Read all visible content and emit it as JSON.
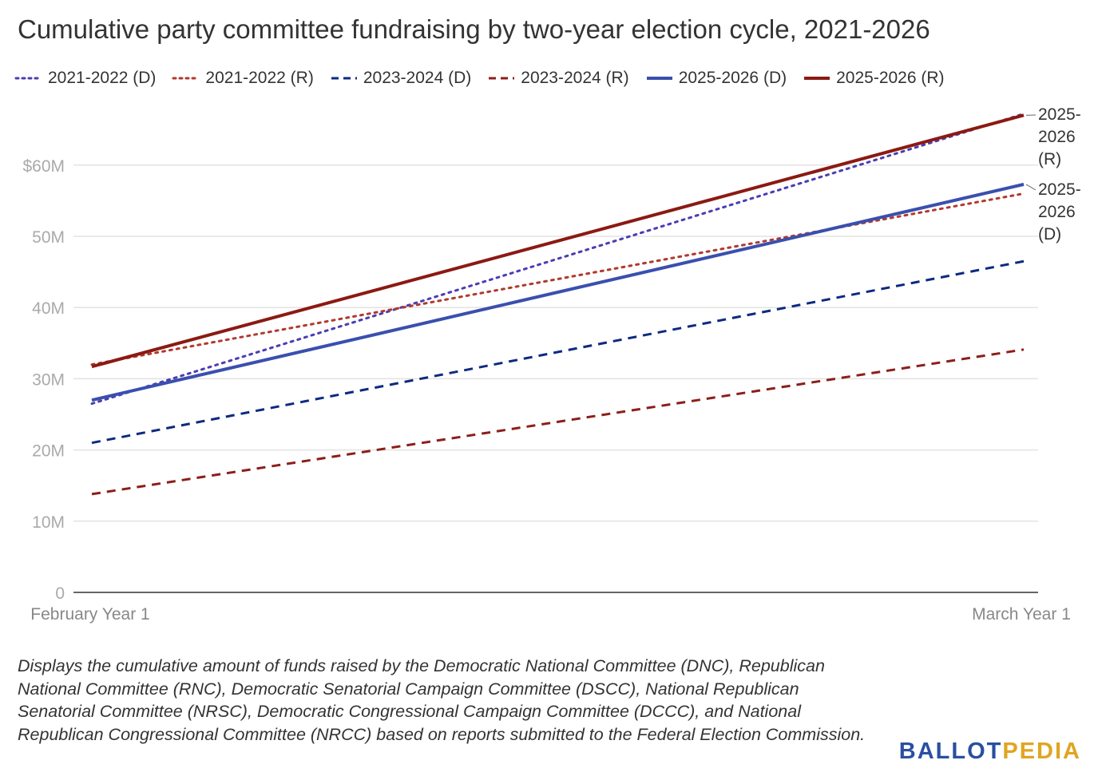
{
  "title": "Cumulative party committee fundraising by two-year election cycle, 2021-2026",
  "notes": "Displays the cumulative amount of funds raised by the Democratic National Committee (DNC), Republican National Committee (RNC), Democratic Senatorial Campaign Committee (DSCC), National Republican Senatorial Committee (NRSC), Democratic Congressional Campaign Committee (DCCC), and National Republican Congressional Committee (NRCC) based on reports submitted to the Federal Election Commission.",
  "logo": {
    "part1": "BALLOT",
    "part2": "PEDIA"
  },
  "chart_data": {
    "type": "line",
    "categories": [
      "February Year 1",
      "March Year 1"
    ],
    "yticks": [
      0,
      10,
      20,
      30,
      40,
      50,
      60
    ],
    "ytick_labels": [
      "0",
      "10M",
      "20M",
      "30M",
      "40M",
      "50M",
      "$60M"
    ],
    "ylim": [
      0,
      70
    ],
    "grid": true,
    "legend_position": "top",
    "series": [
      {
        "name": "2021-2022 (D)",
        "values": [
          26.5,
          67.2
        ],
        "color": "#4a3db3",
        "style": "dotted"
      },
      {
        "name": "2021-2022 (R)",
        "values": [
          32.0,
          56.0
        ],
        "color": "#b03a2e",
        "style": "dotted"
      },
      {
        "name": "2023-2024 (D)",
        "values": [
          21.0,
          46.5
        ],
        "color": "#0d2a80",
        "style": "dashed"
      },
      {
        "name": "2023-2024 (R)",
        "values": [
          13.8,
          34.1
        ],
        "color": "#8b1f1a",
        "style": "dashed"
      },
      {
        "name": "2025-2026 (D)",
        "values": [
          27.0,
          57.3
        ],
        "color": "#3a4fae",
        "style": "solid",
        "end_label": [
          "2025-",
          "2026",
          "(D)"
        ]
      },
      {
        "name": "2025-2026 (R)",
        "values": [
          31.7,
          67.0
        ],
        "color": "#8b1a12",
        "style": "solid",
        "end_label": [
          "2025-",
          "2026",
          "(R)"
        ]
      }
    ]
  }
}
